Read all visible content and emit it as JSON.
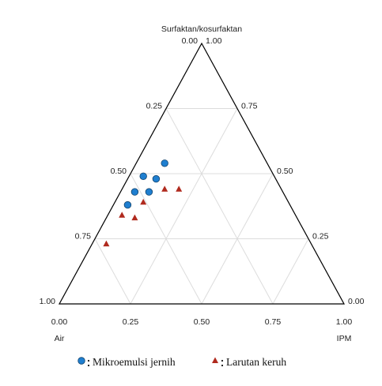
{
  "chart_data": {
    "type": "ternary",
    "top_label": "Surfaktan/kosurfaktan",
    "left_label": "Air",
    "right_label": "IPM",
    "left_ticks": [
      {
        "value": 0,
        "label": "0.00"
      },
      {
        "value": 0.25,
        "label": "0.25"
      },
      {
        "value": 0.5,
        "label": "0.50"
      },
      {
        "value": 0.75,
        "label": "0.75"
      },
      {
        "value": 1,
        "label": "1.00"
      }
    ],
    "top_ticks": [
      {
        "value": 1,
        "label": "1.00"
      },
      {
        "value": 0.75,
        "label": "0.75"
      },
      {
        "value": 0.5,
        "label": "0.50"
      },
      {
        "value": 0.25,
        "label": "0.25"
      },
      {
        "value": 0,
        "label": "0.00"
      }
    ],
    "right_ticks": [
      {
        "value": 0,
        "label": "0.00"
      },
      {
        "value": 0.25,
        "label": "0.25"
      },
      {
        "value": 0.5,
        "label": "0.50"
      },
      {
        "value": 0.75,
        "label": "0.75"
      },
      {
        "value": 1,
        "label": "1.00"
      }
    ],
    "grid": true,
    "series": [
      {
        "name": "Mikroemulsi jernih",
        "color": "#1f7fd0",
        "marker": "circle",
        "values": [
          0.54,
          0.49,
          0.48,
          0.43,
          0.43,
          0.38
        ],
        "x": [
          0.1,
          0.05,
          0.1,
          0.05,
          0.1,
          0.05
        ]
      },
      {
        "name": "Larutan keruh",
        "color": "#b02a1e",
        "marker": "triangle",
        "values": [
          0.44,
          0.44,
          0.39,
          0.34,
          0.33,
          0.23
        ],
        "x": [
          0.15,
          0.2,
          0.1,
          0.05,
          0.1,
          0.05
        ]
      }
    ]
  }
}
